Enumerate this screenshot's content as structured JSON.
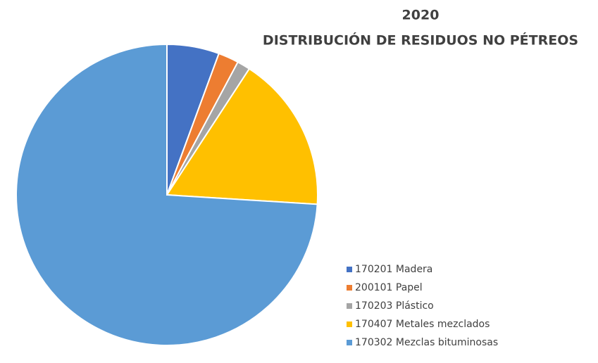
{
  "chart_data": {
    "type": "pie",
    "title": "2020",
    "subtitle": "DISTRIBUCIÓN DE RESIDUOS NO PÉTREOS",
    "categories": [
      "170201 Madera",
      "200101 Papel",
      "170203 Plástico",
      "170407 Metales mezclados",
      "170302 Mezclas bituminosas"
    ],
    "values": [
      5.6,
      2.2,
      1.4,
      16.8,
      74.0
    ],
    "colors": [
      "#4472c4",
      "#ed7d31",
      "#a5a5a5",
      "#ffc000",
      "#5b9bd5"
    ],
    "legend": "right"
  }
}
